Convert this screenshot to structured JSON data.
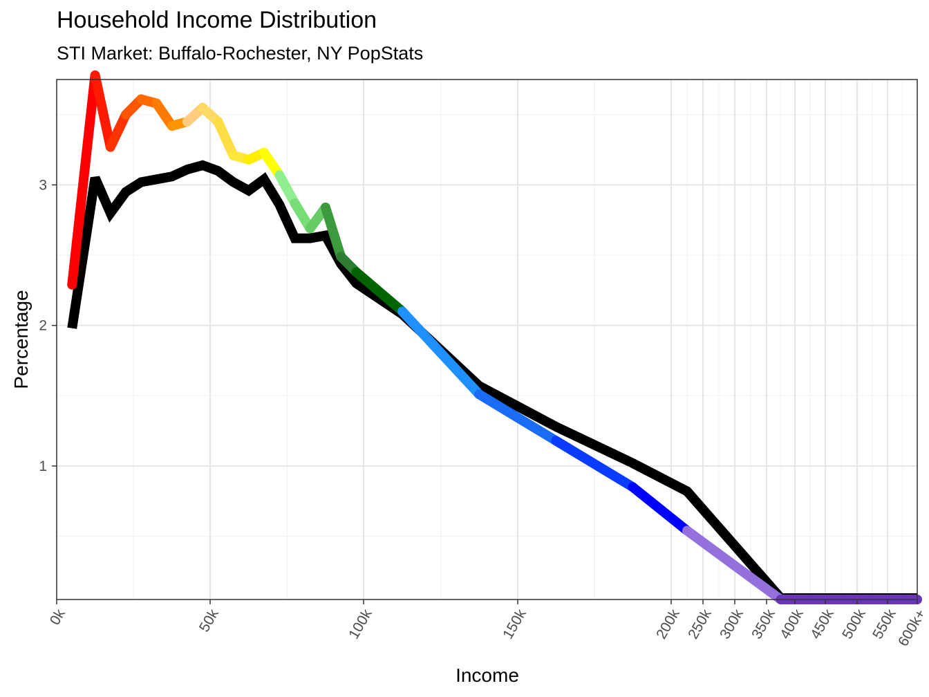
{
  "chart_data": {
    "type": "line",
    "title": "Household Income Distribution",
    "subtitle": "STI Market: Buffalo-Rochester, NY PopStats",
    "xlabel": "Income",
    "ylabel": "Percentage",
    "x_tick_labels": [
      "0k",
      "50k",
      "100k",
      "150k",
      "200k",
      "250k",
      "300k",
      "350k",
      "400k",
      "450k",
      "500k",
      "550k",
      "600k+"
    ],
    "y_ticks": [
      1,
      2,
      3
    ],
    "ylim": [
      0.05,
      3.75
    ],
    "grid": true,
    "income_brackets": [
      "5k",
      "12.5k",
      "17.5k",
      "22.5k",
      "27.5k",
      "32.5k",
      "37.5k",
      "42.5k",
      "47.5k",
      "52.5k",
      "57.5k",
      "62.5k",
      "67.5k",
      "72.5k",
      "77.5k",
      "82.5k",
      "87.5k",
      "92.5k",
      "97.5k",
      "112.5k",
      "137.5k",
      "162.5k",
      "187.5k",
      "225k",
      "375k",
      "600k+"
    ],
    "series": [
      {
        "role": "market",
        "color": "#000000",
        "values": [
          1.98,
          3.05,
          2.8,
          2.95,
          3.02,
          3.04,
          3.06,
          3.11,
          3.14,
          3.1,
          3.02,
          2.96,
          3.04,
          2.86,
          2.62,
          2.62,
          2.64,
          2.44,
          2.3,
          2.08,
          1.57,
          1.28,
          1.02,
          0.82,
          0.06,
          0.06
        ]
      },
      {
        "role": "comparison",
        "values": [
          2.29,
          3.78,
          3.27,
          3.5,
          3.61,
          3.58,
          3.42,
          3.45,
          3.55,
          3.45,
          3.21,
          3.18,
          3.23,
          3.07,
          2.87,
          2.69,
          2.84,
          2.49,
          2.38,
          2.1,
          1.51,
          1.18,
          0.85,
          0.54,
          0.05,
          0.05
        ],
        "segment_colors": [
          "#ff0000",
          "#ff1a00",
          "#ff3300",
          "#ff5500",
          "#ff6a00",
          "#ff7a00",
          "#ff9500",
          "#ffcc80",
          "#ffd966",
          "#ffdd44",
          "#ffe83a",
          "#ffee00",
          "#ffff00",
          "#90ee90",
          "#77dd77",
          "#66cc66",
          "#3c9a3c",
          "#2e7d32",
          "#006400",
          "#1e90ff",
          "#1a6cf5",
          "#0a3cff",
          "#0000ff",
          "#9370db",
          "#6a35b8"
        ]
      }
    ]
  }
}
